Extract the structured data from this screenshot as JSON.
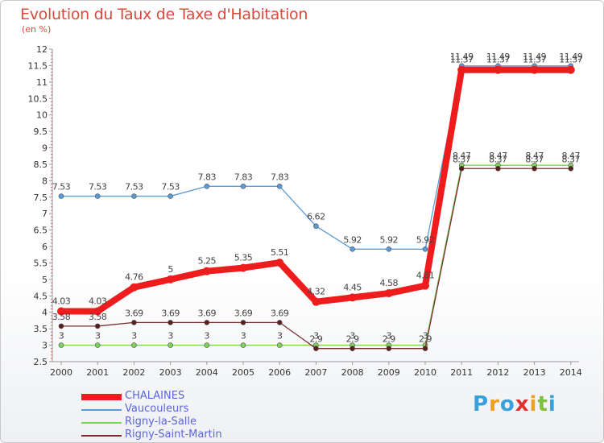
{
  "header": {
    "title": "Evolution du Taux de Taxe d'Habitation",
    "subtitle": "(en %)"
  },
  "chart_data": {
    "type": "line",
    "title": "Evolution du Taux de Taxe d'Habitation",
    "ylabel": "(en %)",
    "xlabel": "",
    "x": [
      "2000",
      "2001",
      "2002",
      "2003",
      "2004",
      "2005",
      "2006",
      "2007",
      "2008",
      "2009",
      "2010",
      "2011",
      "2012",
      "2013",
      "2014"
    ],
    "ylim": [
      2.5,
      12
    ],
    "yticks": [
      "2.5",
      "3",
      "3.5",
      "4",
      "4.5",
      "5",
      "5.5",
      "6",
      "6.5",
      "7",
      "7.5",
      "8",
      "8.5",
      "9",
      "9.5",
      "10",
      "10.5",
      "11",
      "11.5",
      "12"
    ],
    "grid": false,
    "legend_position": "bottom-left",
    "series": [
      {
        "name": "CHALAINES",
        "color": "#ee1c1c",
        "values": [
          4.03,
          4.03,
          4.76,
          5,
          5.25,
          5.35,
          5.51,
          4.32,
          4.45,
          4.58,
          4.81,
          11.37,
          11.37,
          11.37,
          11.37
        ],
        "labels": [
          "4.03",
          "4.03",
          "4.76",
          "5",
          "5.25",
          "5.35",
          "5.51",
          "4.32",
          "4.45",
          "4.58",
          "4.81",
          "11.37",
          "11.37",
          "11.37",
          "11.37"
        ]
      },
      {
        "name": "Vaucouleurs",
        "color": "#5b9bd5",
        "values": [
          7.53,
          7.53,
          7.53,
          7.53,
          7.83,
          7.83,
          7.83,
          6.62,
          5.92,
          5.92,
          5.92,
          11.49,
          11.49,
          11.49,
          11.49
        ],
        "labels": [
          "7.53",
          "7.53",
          "7.53",
          "7.53",
          "7.83",
          "7.83",
          "7.83",
          "6.62",
          "5.92",
          "5.92",
          "5.92",
          "11.49",
          "11.49",
          "11.49",
          "11.49"
        ]
      },
      {
        "name": "Rigny-la-Salle",
        "color": "#7dd35a",
        "values": [
          3,
          3,
          3,
          3,
          3,
          3,
          3,
          3,
          3,
          3,
          3,
          8.47,
          8.47,
          8.47,
          8.47
        ],
        "labels": [
          "3",
          "3",
          "3",
          "3",
          "3",
          "3",
          "3",
          "3",
          "3",
          "3",
          "3",
          "8.47",
          "8.47",
          "8.47",
          "8.47"
        ]
      },
      {
        "name": "Rigny-Saint-Martin",
        "color": "#7a2e2e",
        "values": [
          3.58,
          3.58,
          3.69,
          3.69,
          3.69,
          3.69,
          3.69,
          2.9,
          2.9,
          2.9,
          2.9,
          8.37,
          8.37,
          8.37,
          8.37
        ],
        "labels": [
          "3.58",
          "3.58",
          "3.69",
          "3.69",
          "3.69",
          "3.69",
          "3.69",
          "2.9",
          "2.9",
          "2.9",
          "2.9",
          "8.37",
          "8.37",
          "8.37",
          "8.37"
        ]
      }
    ]
  },
  "logo": {
    "letters": [
      "P",
      "r",
      "o",
      "x",
      "i",
      "t",
      "i"
    ],
    "colors": [
      "#3aa0dc",
      "#f0a020",
      "#3aa0dc",
      "#e03030",
      "#f0a020",
      "#80c040",
      "#3aa0dc"
    ]
  }
}
